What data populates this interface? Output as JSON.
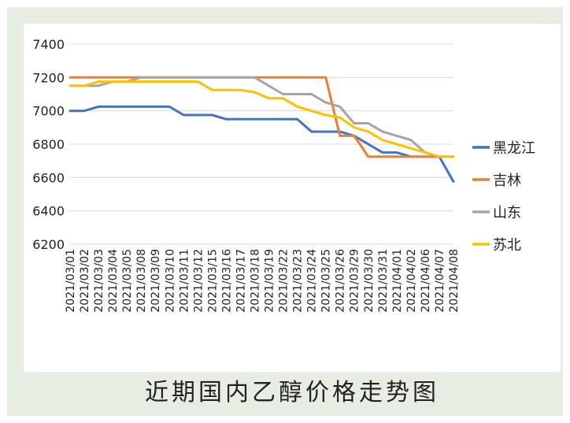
{
  "caption": "近期国内乙醇价格走势图",
  "chart_data": {
    "type": "line",
    "title": "",
    "xlabel": "",
    "ylabel": "",
    "ylim": [
      6200,
      7400
    ],
    "y_ticks": [
      6200,
      6400,
      6600,
      6800,
      7000,
      7200,
      7400
    ],
    "grid": true,
    "legend_position": "right",
    "categories": [
      "2021/03/01",
      "2021/03/02",
      "2021/03/03",
      "2021/03/04",
      "2021/03/05",
      "2021/03/08",
      "2021/03/09",
      "2021/03/10",
      "2021/03/11",
      "2021/03/12",
      "2021/03/15",
      "2021/03/16",
      "2021/03/17",
      "2021/03/18",
      "2021/03/19",
      "2021/03/22",
      "2021/03/23",
      "2021/03/24",
      "2021/03/25",
      "2021/03/26",
      "2021/03/29",
      "2021/03/30",
      "2021/03/31",
      "2021/04/01",
      "2021/04/02",
      "2021/04/06",
      "2021/04/07",
      "2021/04/08"
    ],
    "series": [
      {
        "name": "黑龙江",
        "color": "#4472c4",
        "values": [
          7000,
          7000,
          7025,
          7025,
          7025,
          7025,
          7025,
          7025,
          6975,
          6975,
          6975,
          6950,
          6950,
          6950,
          6950,
          6950,
          6950,
          6875,
          6875,
          6875,
          6850,
          6800,
          6750,
          6750,
          6725,
          6725,
          6725,
          6575
        ]
      },
      {
        "name": "吉林",
        "color": "#ed7d31",
        "values": [
          7200,
          7200,
          7200,
          7200,
          7200,
          7200,
          7200,
          7200,
          7200,
          7200,
          7200,
          7200,
          7200,
          7200,
          7200,
          7200,
          7200,
          7200,
          7200,
          6850,
          6850,
          6725,
          6725,
          6725,
          6725,
          6725,
          6725,
          6725
        ]
      },
      {
        "name": "山东",
        "color": "#a5a5a5",
        "values": [
          7150,
          7150,
          7150,
          7175,
          7175,
          7200,
          7200,
          7200,
          7200,
          7200,
          7200,
          7200,
          7200,
          7200,
          7150,
          7100,
          7100,
          7100,
          7050,
          7025,
          6925,
          6925,
          6875,
          6850,
          6825,
          6750,
          6725,
          6725
        ]
      },
      {
        "name": "苏北",
        "color": "#ffc000",
        "values": [
          7150,
          7150,
          7175,
          7175,
          7175,
          7175,
          7175,
          7175,
          7175,
          7175,
          7125,
          7125,
          7125,
          7112,
          7075,
          7075,
          7025,
          7000,
          6975,
          6960,
          6900,
          6875,
          6825,
          6800,
          6775,
          6750,
          6725,
          6725
        ]
      }
    ]
  }
}
